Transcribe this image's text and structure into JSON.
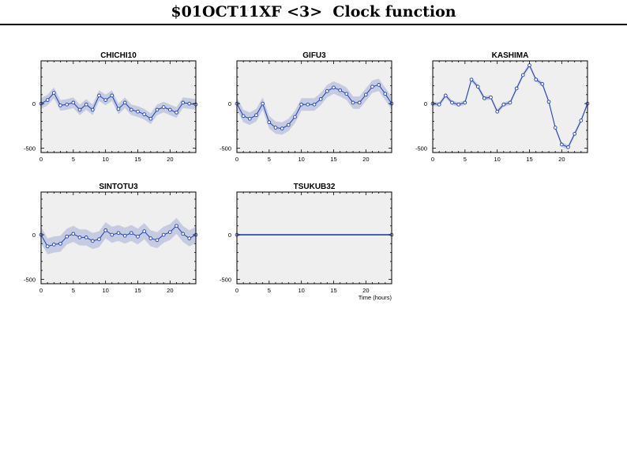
{
  "page": {
    "title": "$01OCT11XF <3>  Clock function"
  },
  "colors": {
    "line": "#1f3fb5",
    "band": "#c5cbe0",
    "panel_bg": "#efefef",
    "axis": "#000000"
  },
  "chart_data": [
    {
      "type": "line",
      "title": "CHICHI10",
      "xlabel": "",
      "ylabel": "",
      "xlim": [
        0,
        24
      ],
      "ylim": [
        -550,
        480
      ],
      "xticks": [
        0,
        5,
        10,
        15,
        20
      ],
      "yticks": [
        -500,
        0
      ],
      "series": [
        {
          "x": [
            0,
            1,
            2,
            3,
            4,
            5,
            6,
            7,
            8,
            9,
            10,
            11,
            12,
            13,
            14,
            15,
            16,
            17,
            18,
            19,
            20,
            21,
            22,
            23,
            24
          ],
          "y": [
            0,
            40,
            120,
            -20,
            -10,
            10,
            -70,
            -10,
            -70,
            90,
            40,
            90,
            -60,
            10,
            -70,
            -90,
            -120,
            -170,
            -70,
            -40,
            -70,
            -100,
            10,
            0,
            -10
          ],
          "band": 60
        }
      ]
    },
    {
      "type": "line",
      "title": "GIFU3",
      "xlabel": "",
      "ylabel": "",
      "xlim": [
        0,
        24
      ],
      "ylim": [
        -550,
        480
      ],
      "xticks": [
        0,
        5,
        10,
        15,
        20
      ],
      "yticks": [
        -500,
        0
      ],
      "series": [
        {
          "x": [
            0,
            1,
            2,
            3,
            4,
            5,
            6,
            7,
            8,
            9,
            10,
            11,
            12,
            13,
            14,
            15,
            16,
            17,
            18,
            19,
            20,
            21,
            22,
            23,
            24
          ],
          "y": [
            0,
            -140,
            -170,
            -130,
            0,
            -210,
            -270,
            -280,
            -240,
            -150,
            -10,
            -10,
            -10,
            50,
            140,
            180,
            150,
            110,
            10,
            10,
            100,
            190,
            210,
            110,
            0
          ],
          "band": 70
        }
      ]
    },
    {
      "type": "line",
      "title": "KASHIMA",
      "xlabel": "",
      "ylabel": "",
      "xlim": [
        0,
        24
      ],
      "ylim": [
        -550,
        480
      ],
      "xticks": [
        0,
        5,
        10,
        15,
        20
      ],
      "yticks": [
        -500,
        0
      ],
      "series": [
        {
          "x": [
            0,
            1,
            2,
            3,
            4,
            5,
            6,
            7,
            8,
            9,
            10,
            11,
            12,
            13,
            14,
            15,
            16,
            17,
            18,
            19,
            20,
            21,
            22,
            23,
            24
          ],
          "y": [
            0,
            -10,
            90,
            10,
            -10,
            10,
            270,
            190,
            60,
            70,
            -90,
            -10,
            10,
            170,
            320,
            430,
            270,
            220,
            20,
            -270,
            -460,
            -490,
            -340,
            -190,
            0
          ],
          "band": 25
        }
      ]
    },
    {
      "type": "line",
      "title": "SINTOTU3",
      "xlabel": "",
      "ylabel": "",
      "xlim": [
        0,
        24
      ],
      "ylim": [
        -550,
        480
      ],
      "xticks": [
        0,
        5,
        10,
        15,
        20
      ],
      "yticks": [
        -500,
        0
      ],
      "series": [
        {
          "x": [
            0,
            1,
            2,
            3,
            4,
            5,
            6,
            7,
            8,
            9,
            10,
            11,
            12,
            13,
            14,
            15,
            16,
            17,
            18,
            19,
            20,
            21,
            22,
            23,
            24
          ],
          "y": [
            0,
            -130,
            -110,
            -100,
            -20,
            10,
            -30,
            -30,
            -70,
            -50,
            50,
            0,
            20,
            -10,
            20,
            -20,
            40,
            -40,
            -60,
            0,
            30,
            100,
            10,
            -40,
            0
          ],
          "band": 90
        }
      ]
    },
    {
      "type": "line",
      "title": "TSUKUB32",
      "xlabel": "Time (hours)",
      "ylabel": "",
      "xlim": [
        0,
        24
      ],
      "ylim": [
        -550,
        480
      ],
      "xticks": [
        0,
        5,
        10,
        15,
        20
      ],
      "yticks": [
        -500,
        0
      ],
      "series": [
        {
          "x": [
            0,
            24
          ],
          "y": [
            0,
            0
          ],
          "band": 0
        }
      ]
    }
  ]
}
